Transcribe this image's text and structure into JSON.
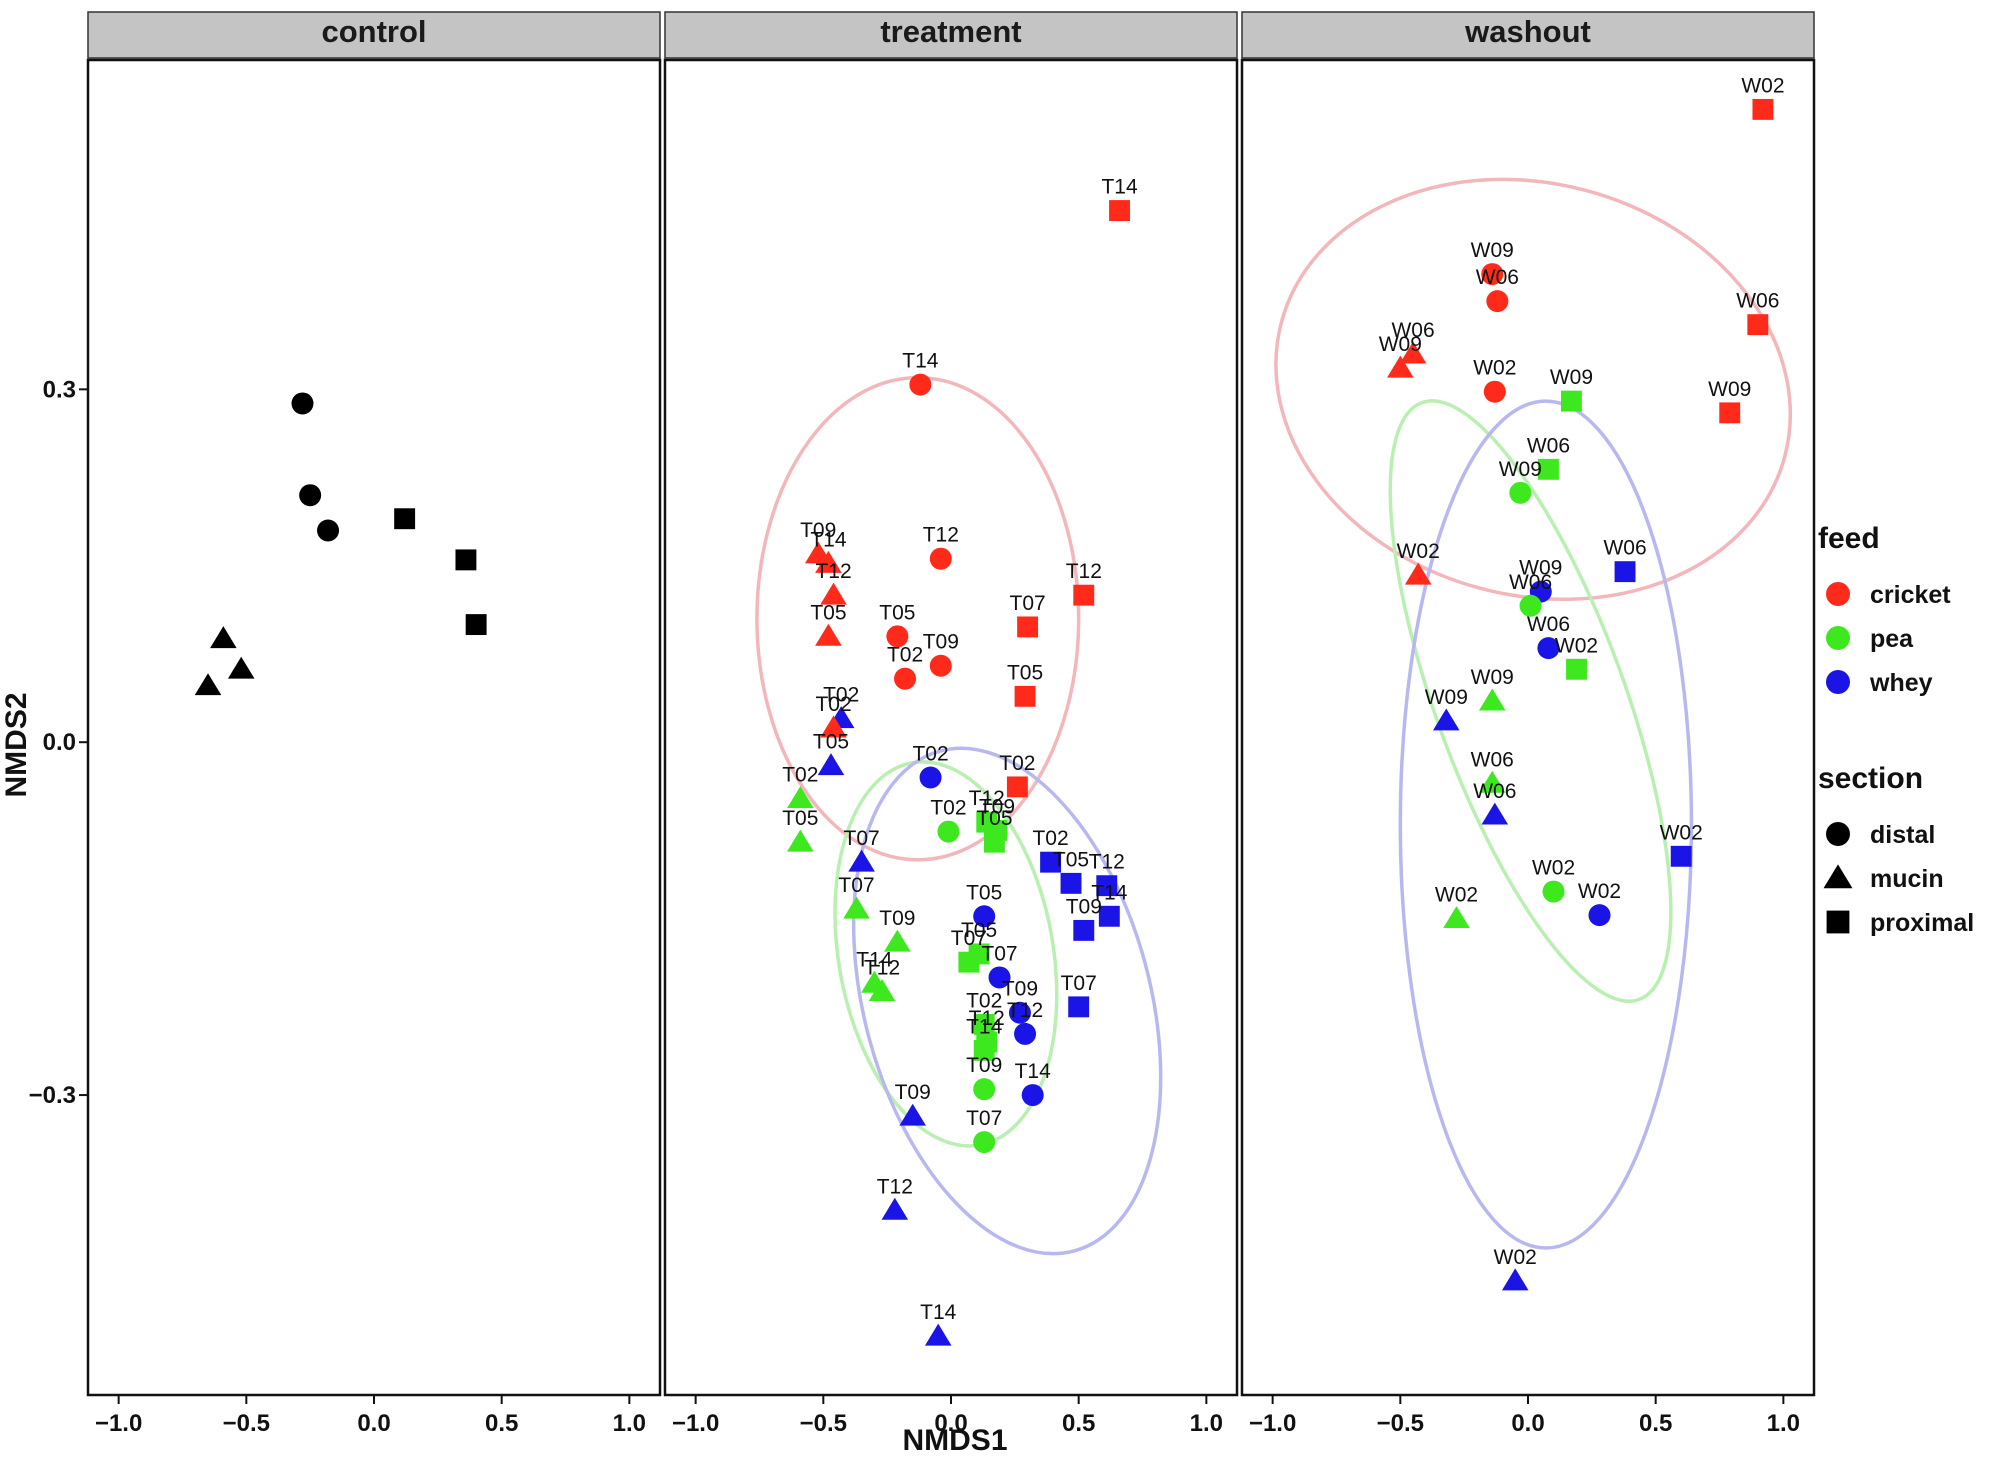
{
  "chart_data": {
    "type": "scatter",
    "xlabel": "NMDS1",
    "ylabel": "NMDS2",
    "xlim": [
      -1.12,
      1.12
    ],
    "ylim": [
      -0.555,
      0.58
    ],
    "xticks": [
      -1.0,
      -0.5,
      0.0,
      0.5,
      1.0
    ],
    "xtick_labels": [
      "−1.0",
      "−0.5",
      "0.0",
      "0.5",
      "1.0"
    ],
    "yticks": [
      0.3,
      0.0,
      -0.3
    ],
    "ytick_labels": [
      "0.3",
      "0.0",
      "−0.3"
    ],
    "grid": false,
    "colors": {
      "cricket": "#ff2a1a",
      "pea": "#3ee81e",
      "whey": "#1a14e6",
      "control": "#000000"
    },
    "ellipse_colors": {
      "cricket": "#f2b6bb",
      "pea": "#b9efb0",
      "whey": "#b8b8f0"
    },
    "legend": {
      "position": "right",
      "feed_title": "feed",
      "feed_items": [
        {
          "key": "cricket",
          "label": "cricket"
        },
        {
          "key": "pea",
          "label": "pea"
        },
        {
          "key": "whey",
          "label": "whey"
        }
      ],
      "section_title": "section",
      "section_items": [
        {
          "key": "distal",
          "label": "distal",
          "shape": "circle"
        },
        {
          "key": "mucin",
          "label": "mucin",
          "shape": "triangle"
        },
        {
          "key": "proximal",
          "label": "proximal",
          "shape": "square"
        }
      ]
    },
    "panels": [
      {
        "title": "control",
        "ellipses": [],
        "points": [
          {
            "x": -0.28,
            "y": 0.288,
            "feed": "control",
            "section": "distal",
            "label": ""
          },
          {
            "x": -0.25,
            "y": 0.21,
            "feed": "control",
            "section": "distal",
            "label": ""
          },
          {
            "x": -0.18,
            "y": 0.18,
            "feed": "control",
            "section": "distal",
            "label": ""
          },
          {
            "x": 0.12,
            "y": 0.19,
            "feed": "control",
            "section": "proximal",
            "label": ""
          },
          {
            "x": 0.36,
            "y": 0.155,
            "feed": "control",
            "section": "proximal",
            "label": ""
          },
          {
            "x": 0.4,
            "y": 0.1,
            "feed": "control",
            "section": "proximal",
            "label": ""
          },
          {
            "x": -0.59,
            "y": 0.088,
            "feed": "control",
            "section": "mucin",
            "label": ""
          },
          {
            "x": -0.52,
            "y": 0.062,
            "feed": "control",
            "section": "mucin",
            "label": ""
          },
          {
            "x": -0.65,
            "y": 0.048,
            "feed": "control",
            "section": "mucin",
            "label": ""
          }
        ]
      },
      {
        "title": "treatment",
        "ellipses": [
          {
            "feed": "cricket",
            "cx": -0.13,
            "cy": 0.105,
            "rx": 0.63,
            "ry": 0.205,
            "angle": 0
          },
          {
            "feed": "pea",
            "cx": -0.02,
            "cy": -0.18,
            "rx": 0.42,
            "ry": 0.165,
            "angle": 10
          },
          {
            "feed": "whey",
            "cx": 0.22,
            "cy": -0.22,
            "rx": 0.56,
            "ry": 0.22,
            "angle": 15
          }
        ],
        "points": [
          {
            "x": 0.66,
            "y": 0.452,
            "feed": "cricket",
            "section": "proximal",
            "label": "T14"
          },
          {
            "x": -0.12,
            "y": 0.304,
            "feed": "cricket",
            "section": "distal",
            "label": "T14"
          },
          {
            "x": -0.52,
            "y": 0.16,
            "feed": "cricket",
            "section": "mucin",
            "label": "T09"
          },
          {
            "x": -0.48,
            "y": 0.152,
            "feed": "cricket",
            "section": "mucin",
            "label": "T14"
          },
          {
            "x": -0.04,
            "y": 0.156,
            "feed": "cricket",
            "section": "distal",
            "label": "T12"
          },
          {
            "x": -0.46,
            "y": 0.125,
            "feed": "cricket",
            "section": "mucin",
            "label": "T12"
          },
          {
            "x": 0.52,
            "y": 0.125,
            "feed": "cricket",
            "section": "proximal",
            "label": "T12"
          },
          {
            "x": 0.3,
            "y": 0.098,
            "feed": "cricket",
            "section": "proximal",
            "label": "T07"
          },
          {
            "x": -0.48,
            "y": 0.09,
            "feed": "cricket",
            "section": "mucin",
            "label": "T05"
          },
          {
            "x": -0.21,
            "y": 0.09,
            "feed": "cricket",
            "section": "distal",
            "label": "T05"
          },
          {
            "x": -0.04,
            "y": 0.065,
            "feed": "cricket",
            "section": "distal",
            "label": "T09"
          },
          {
            "x": -0.18,
            "y": 0.054,
            "feed": "cricket",
            "section": "distal",
            "label": "T02"
          },
          {
            "x": 0.29,
            "y": 0.039,
            "feed": "cricket",
            "section": "proximal",
            "label": "T05"
          },
          {
            "x": -0.43,
            "y": 0.02,
            "feed": "whey",
            "section": "mucin",
            "label": "T02"
          },
          {
            "x": -0.46,
            "y": 0.012,
            "feed": "cricket",
            "section": "mucin",
            "label": "T02"
          },
          {
            "x": -0.47,
            "y": -0.02,
            "feed": "whey",
            "section": "mucin",
            "label": "T05"
          },
          {
            "x": -0.08,
            "y": -0.03,
            "feed": "whey",
            "section": "distal",
            "label": "T02"
          },
          {
            "x": 0.26,
            "y": -0.038,
            "feed": "cricket",
            "section": "proximal",
            "label": "T02"
          },
          {
            "x": -0.59,
            "y": -0.048,
            "feed": "pea",
            "section": "mucin",
            "label": "T02"
          },
          {
            "x": 0.14,
            "y": -0.068,
            "feed": "pea",
            "section": "proximal",
            "label": "T12"
          },
          {
            "x": 0.18,
            "y": -0.075,
            "feed": "pea",
            "section": "proximal",
            "label": "T09"
          },
          {
            "x": 0.17,
            "y": -0.085,
            "feed": "pea",
            "section": "proximal",
            "label": "T05"
          },
          {
            "x": -0.01,
            "y": -0.076,
            "feed": "pea",
            "section": "distal",
            "label": "T02"
          },
          {
            "x": -0.59,
            "y": -0.085,
            "feed": "pea",
            "section": "mucin",
            "label": "T05"
          },
          {
            "x": -0.35,
            "y": -0.102,
            "feed": "whey",
            "section": "mucin",
            "label": "T07"
          },
          {
            "x": 0.39,
            "y": -0.102,
            "feed": "whey",
            "section": "proximal",
            "label": "T02"
          },
          {
            "x": 0.47,
            "y": -0.12,
            "feed": "whey",
            "section": "proximal",
            "label": "T05"
          },
          {
            "x": 0.61,
            "y": -0.122,
            "feed": "whey",
            "section": "proximal",
            "label": "T12"
          },
          {
            "x": -0.37,
            "y": -0.142,
            "feed": "pea",
            "section": "mucin",
            "label": "T07"
          },
          {
            "x": 0.13,
            "y": -0.148,
            "feed": "whey",
            "section": "distal",
            "label": "T05"
          },
          {
            "x": 0.62,
            "y": -0.148,
            "feed": "whey",
            "section": "proximal",
            "label": "T14"
          },
          {
            "x": 0.52,
            "y": -0.16,
            "feed": "whey",
            "section": "proximal",
            "label": "T09"
          },
          {
            "x": -0.21,
            "y": -0.17,
            "feed": "pea",
            "section": "mucin",
            "label": "T09"
          },
          {
            "x": 0.11,
            "y": -0.18,
            "feed": "pea",
            "section": "proximal",
            "label": "T05"
          },
          {
            "x": 0.07,
            "y": -0.187,
            "feed": "pea",
            "section": "proximal",
            "label": "T07"
          },
          {
            "x": 0.19,
            "y": -0.2,
            "feed": "whey",
            "section": "distal",
            "label": "T07"
          },
          {
            "x": -0.3,
            "y": -0.205,
            "feed": "pea",
            "section": "mucin",
            "label": "T14"
          },
          {
            "x": -0.27,
            "y": -0.212,
            "feed": "pea",
            "section": "mucin",
            "label": "T12"
          },
          {
            "x": 0.5,
            "y": -0.225,
            "feed": "whey",
            "section": "proximal",
            "label": "T07"
          },
          {
            "x": 0.27,
            "y": -0.23,
            "feed": "whey",
            "section": "distal",
            "label": "T09"
          },
          {
            "x": 0.13,
            "y": -0.24,
            "feed": "pea",
            "section": "proximal",
            "label": "T02"
          },
          {
            "x": 0.29,
            "y": -0.248,
            "feed": "whey",
            "section": "distal",
            "label": "T12"
          },
          {
            "x": 0.14,
            "y": -0.255,
            "feed": "pea",
            "section": "proximal",
            "label": "T12"
          },
          {
            "x": 0.13,
            "y": -0.262,
            "feed": "pea",
            "section": "proximal",
            "label": "T14"
          },
          {
            "x": 0.13,
            "y": -0.295,
            "feed": "pea",
            "section": "distal",
            "label": "T09"
          },
          {
            "x": 0.32,
            "y": -0.3,
            "feed": "whey",
            "section": "distal",
            "label": "T14"
          },
          {
            "x": -0.15,
            "y": -0.318,
            "feed": "whey",
            "section": "mucin",
            "label": "T09"
          },
          {
            "x": 0.13,
            "y": -0.34,
            "feed": "pea",
            "section": "distal",
            "label": "T07"
          },
          {
            "x": -0.22,
            "y": -0.398,
            "feed": "whey",
            "section": "mucin",
            "label": "T12"
          },
          {
            "x": -0.05,
            "y": -0.505,
            "feed": "whey",
            "section": "mucin",
            "label": "T14"
          }
        ]
      },
      {
        "title": "washout",
        "ellipses": [
          {
            "feed": "cricket",
            "cx": 0.02,
            "cy": 0.3,
            "rx": 1.02,
            "ry": 0.175,
            "angle": -15
          },
          {
            "feed": "pea",
            "cx": 0.01,
            "cy": 0.035,
            "rx": 0.37,
            "ry": 0.27,
            "angle": 20
          },
          {
            "feed": "whey",
            "cx": 0.07,
            "cy": -0.07,
            "rx": 0.57,
            "ry": 0.36,
            "angle": 0
          }
        ],
        "points": [
          {
            "x": 0.92,
            "y": 0.538,
            "feed": "cricket",
            "section": "proximal",
            "label": "W02"
          },
          {
            "x": -0.14,
            "y": 0.398,
            "feed": "cricket",
            "section": "distal",
            "label": "W09"
          },
          {
            "x": -0.12,
            "y": 0.375,
            "feed": "cricket",
            "section": "distal",
            "label": "W06"
          },
          {
            "x": 0.9,
            "y": 0.355,
            "feed": "cricket",
            "section": "proximal",
            "label": "W06"
          },
          {
            "x": -0.45,
            "y": 0.33,
            "feed": "cricket",
            "section": "mucin",
            "label": "W06"
          },
          {
            "x": -0.5,
            "y": 0.318,
            "feed": "cricket",
            "section": "mucin",
            "label": "W09"
          },
          {
            "x": -0.13,
            "y": 0.298,
            "feed": "cricket",
            "section": "distal",
            "label": "W02"
          },
          {
            "x": 0.17,
            "y": 0.29,
            "feed": "pea",
            "section": "proximal",
            "label": "W09"
          },
          {
            "x": 0.79,
            "y": 0.28,
            "feed": "cricket",
            "section": "proximal",
            "label": "W09"
          },
          {
            "x": 0.08,
            "y": 0.232,
            "feed": "pea",
            "section": "proximal",
            "label": "W06"
          },
          {
            "x": -0.03,
            "y": 0.212,
            "feed": "pea",
            "section": "distal",
            "label": "W09"
          },
          {
            "x": 0.38,
            "y": 0.145,
            "feed": "whey",
            "section": "proximal",
            "label": "W06"
          },
          {
            "x": -0.43,
            "y": 0.142,
            "feed": "cricket",
            "section": "mucin",
            "label": "W02"
          },
          {
            "x": 0.05,
            "y": 0.128,
            "feed": "whey",
            "section": "distal",
            "label": "W09"
          },
          {
            "x": 0.01,
            "y": 0.116,
            "feed": "pea",
            "section": "distal",
            "label": "W06"
          },
          {
            "x": 0.08,
            "y": 0.08,
            "feed": "whey",
            "section": "distal",
            "label": "W06"
          },
          {
            "x": 0.19,
            "y": 0.062,
            "feed": "pea",
            "section": "proximal",
            "label": "W02"
          },
          {
            "x": -0.14,
            "y": 0.035,
            "feed": "pea",
            "section": "mucin",
            "label": "W09"
          },
          {
            "x": -0.32,
            "y": 0.018,
            "feed": "whey",
            "section": "mucin",
            "label": "W09"
          },
          {
            "x": -0.14,
            "y": -0.035,
            "feed": "pea",
            "section": "mucin",
            "label": "W06"
          },
          {
            "x": -0.13,
            "y": -0.062,
            "feed": "whey",
            "section": "mucin",
            "label": "W06"
          },
          {
            "x": 0.6,
            "y": -0.097,
            "feed": "whey",
            "section": "proximal",
            "label": "W02"
          },
          {
            "x": 0.1,
            "y": -0.127,
            "feed": "pea",
            "section": "distal",
            "label": "W02"
          },
          {
            "x": 0.28,
            "y": -0.147,
            "feed": "whey",
            "section": "distal",
            "label": "W02"
          },
          {
            "x": -0.28,
            "y": -0.15,
            "feed": "pea",
            "section": "mucin",
            "label": "W02"
          },
          {
            "x": -0.05,
            "y": -0.458,
            "feed": "whey",
            "section": "mucin",
            "label": "W02"
          }
        ]
      }
    ]
  }
}
